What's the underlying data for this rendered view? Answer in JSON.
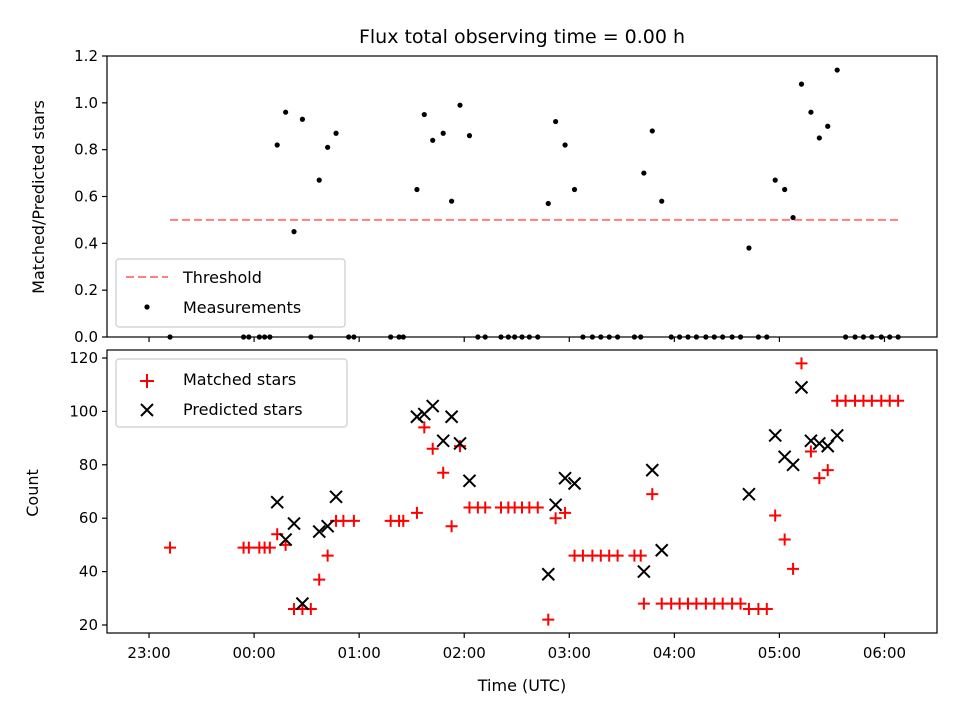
{
  "chart_data": [
    {
      "type": "scatter",
      "title": "Flux total observing time = 0.00 h",
      "xlabel": "",
      "ylabel": "Matched/Predicted stars",
      "ylim": [
        0,
        1.2
      ],
      "yticks": [
        0.0,
        0.2,
        0.4,
        0.6,
        0.8,
        1.0,
        1.2
      ],
      "ytick_labels": [
        "0.0",
        "0.2",
        "0.4",
        "0.6",
        "0.8",
        "1.0",
        "1.2"
      ],
      "x_unit": "hours relative to 00:00 UTC",
      "xlim": [
        -1.4,
        6.5
      ],
      "threshold": {
        "name": "Threshold",
        "value": 0.5,
        "x_range": [
          -0.8,
          6.15
        ],
        "color": "#ff7f7f"
      },
      "measurements": {
        "name": "Measurements",
        "color": "#000000",
        "points": [
          [
            -0.8,
            0.0
          ],
          [
            -0.1,
            0.0
          ],
          [
            -0.05,
            0.0
          ],
          [
            0.05,
            0.0
          ],
          [
            0.1,
            0.0
          ],
          [
            0.15,
            0.0
          ],
          [
            0.22,
            0.82
          ],
          [
            0.3,
            0.96
          ],
          [
            0.38,
            0.45
          ],
          [
            0.46,
            0.93
          ],
          [
            0.54,
            0.0
          ],
          [
            0.62,
            0.67
          ],
          [
            0.7,
            0.81
          ],
          [
            0.78,
            0.87
          ],
          [
            0.9,
            0.0
          ],
          [
            0.95,
            0.0
          ],
          [
            1.3,
            0.0
          ],
          [
            1.38,
            0.0
          ],
          [
            1.42,
            0.0
          ],
          [
            1.55,
            0.63
          ],
          [
            1.62,
            0.95
          ],
          [
            1.7,
            0.84
          ],
          [
            1.8,
            0.87
          ],
          [
            1.88,
            0.58
          ],
          [
            1.96,
            0.99
          ],
          [
            2.05,
            0.86
          ],
          [
            2.13,
            0.0
          ],
          [
            2.2,
            0.0
          ],
          [
            2.35,
            0.0
          ],
          [
            2.42,
            0.0
          ],
          [
            2.48,
            0.0
          ],
          [
            2.55,
            0.0
          ],
          [
            2.62,
            0.0
          ],
          [
            2.7,
            0.0
          ],
          [
            2.8,
            0.57
          ],
          [
            2.87,
            0.92
          ],
          [
            2.96,
            0.82
          ],
          [
            3.05,
            0.63
          ],
          [
            3.13,
            0.0
          ],
          [
            3.22,
            0.0
          ],
          [
            3.3,
            0.0
          ],
          [
            3.38,
            0.0
          ],
          [
            3.46,
            0.0
          ],
          [
            3.62,
            0.0
          ],
          [
            3.68,
            0.0
          ],
          [
            3.71,
            0.7
          ],
          [
            3.79,
            0.88
          ],
          [
            3.88,
            0.58
          ],
          [
            3.97,
            0.0
          ],
          [
            4.05,
            0.0
          ],
          [
            4.13,
            0.0
          ],
          [
            4.21,
            0.0
          ],
          [
            4.3,
            0.0
          ],
          [
            4.38,
            0.0
          ],
          [
            4.46,
            0.0
          ],
          [
            4.55,
            0.0
          ],
          [
            4.63,
            0.0
          ],
          [
            4.71,
            0.38
          ],
          [
            4.8,
            0.0
          ],
          [
            4.88,
            0.0
          ],
          [
            4.96,
            0.67
          ],
          [
            5.05,
            0.63
          ],
          [
            5.13,
            0.51
          ],
          [
            5.21,
            1.08
          ],
          [
            5.3,
            0.96
          ],
          [
            5.38,
            0.85
          ],
          [
            5.46,
            0.9
          ],
          [
            5.55,
            1.14
          ],
          [
            5.63,
            0.0
          ],
          [
            5.72,
            0.0
          ],
          [
            5.8,
            0.0
          ],
          [
            5.88,
            0.0
          ],
          [
            5.97,
            0.0
          ],
          [
            6.05,
            0.0
          ],
          [
            6.13,
            0.0
          ]
        ]
      },
      "legend": {
        "position": "lower-left",
        "entries": [
          "Threshold",
          "Measurements"
        ]
      }
    },
    {
      "type": "scatter",
      "title": "",
      "xlabel": "Time (UTC)",
      "ylabel": "Count",
      "ylim": [
        17,
        123
      ],
      "yticks": [
        20,
        40,
        60,
        80,
        100,
        120
      ],
      "ytick_labels": [
        "20",
        "40",
        "60",
        "80",
        "100",
        "120"
      ],
      "x_unit": "hours relative to 00:00 UTC",
      "xlim": [
        -1.4,
        6.5
      ],
      "xticks": [
        -1,
        0,
        1,
        2,
        3,
        4,
        5,
        6
      ],
      "xtick_labels": [
        "23:00",
        "00:00",
        "01:00",
        "02:00",
        "03:00",
        "04:00",
        "05:00",
        "06:00"
      ],
      "series": [
        {
          "name": "Matched stars",
          "marker": "+",
          "color": "#ff0000",
          "points": [
            [
              -0.8,
              49
            ],
            [
              -0.1,
              49
            ],
            [
              -0.05,
              49
            ],
            [
              0.05,
              49
            ],
            [
              0.1,
              49
            ],
            [
              0.15,
              49
            ],
            [
              0.22,
              54
            ],
            [
              0.3,
              50
            ],
            [
              0.38,
              26
            ],
            [
              0.46,
              26
            ],
            [
              0.54,
              26
            ],
            [
              0.62,
              37
            ],
            [
              0.7,
              46
            ],
            [
              0.78,
              59
            ],
            [
              0.85,
              59
            ],
            [
              0.95,
              59
            ],
            [
              1.3,
              59
            ],
            [
              1.38,
              59
            ],
            [
              1.42,
              59
            ],
            [
              1.55,
              62
            ],
            [
              1.62,
              94
            ],
            [
              1.7,
              86
            ],
            [
              1.8,
              77
            ],
            [
              1.88,
              57
            ],
            [
              1.96,
              87
            ],
            [
              2.05,
              64
            ],
            [
              2.13,
              64
            ],
            [
              2.2,
              64
            ],
            [
              2.35,
              64
            ],
            [
              2.42,
              64
            ],
            [
              2.48,
              64
            ],
            [
              2.55,
              64
            ],
            [
              2.62,
              64
            ],
            [
              2.7,
              64
            ],
            [
              2.8,
              22
            ],
            [
              2.87,
              60
            ],
            [
              2.96,
              62
            ],
            [
              3.05,
              46
            ],
            [
              3.13,
              46
            ],
            [
              3.22,
              46
            ],
            [
              3.3,
              46
            ],
            [
              3.38,
              46
            ],
            [
              3.46,
              46
            ],
            [
              3.62,
              46
            ],
            [
              3.68,
              46
            ],
            [
              3.71,
              28
            ],
            [
              3.79,
              69
            ],
            [
              3.88,
              28
            ],
            [
              3.97,
              28
            ],
            [
              4.05,
              28
            ],
            [
              4.13,
              28
            ],
            [
              4.21,
              28
            ],
            [
              4.3,
              28
            ],
            [
              4.38,
              28
            ],
            [
              4.46,
              28
            ],
            [
              4.55,
              28
            ],
            [
              4.63,
              28
            ],
            [
              4.71,
              26
            ],
            [
              4.8,
              26
            ],
            [
              4.88,
              26
            ],
            [
              4.96,
              61
            ],
            [
              5.05,
              52
            ],
            [
              5.13,
              41
            ],
            [
              5.21,
              118
            ],
            [
              5.3,
              85
            ],
            [
              5.38,
              75
            ],
            [
              5.46,
              78
            ],
            [
              5.55,
              104
            ],
            [
              5.63,
              104
            ],
            [
              5.72,
              104
            ],
            [
              5.8,
              104
            ],
            [
              5.88,
              104
            ],
            [
              5.97,
              104
            ],
            [
              6.05,
              104
            ],
            [
              6.13,
              104
            ]
          ]
        },
        {
          "name": "Predicted stars",
          "marker": "x",
          "color": "#000000",
          "points": [
            [
              0.22,
              66
            ],
            [
              0.3,
              52
            ],
            [
              0.38,
              58
            ],
            [
              0.46,
              28
            ],
            [
              0.62,
              55
            ],
            [
              0.7,
              57
            ],
            [
              0.78,
              68
            ],
            [
              1.55,
              98
            ],
            [
              1.62,
              99
            ],
            [
              1.7,
              102
            ],
            [
              1.8,
              89
            ],
            [
              1.88,
              98
            ],
            [
              1.96,
              88
            ],
            [
              2.05,
              74
            ],
            [
              2.8,
              39
            ],
            [
              2.87,
              65
            ],
            [
              2.96,
              75
            ],
            [
              3.05,
              73
            ],
            [
              3.71,
              40
            ],
            [
              3.79,
              78
            ],
            [
              3.88,
              48
            ],
            [
              4.71,
              69
            ],
            [
              4.96,
              91
            ],
            [
              5.05,
              83
            ],
            [
              5.13,
              80
            ],
            [
              5.21,
              109
            ],
            [
              5.3,
              89
            ],
            [
              5.38,
              88
            ],
            [
              5.46,
              87
            ],
            [
              5.55,
              91
            ]
          ]
        }
      ],
      "legend": {
        "position": "upper-left",
        "entries": [
          "Matched stars",
          "Predicted stars"
        ]
      }
    }
  ]
}
